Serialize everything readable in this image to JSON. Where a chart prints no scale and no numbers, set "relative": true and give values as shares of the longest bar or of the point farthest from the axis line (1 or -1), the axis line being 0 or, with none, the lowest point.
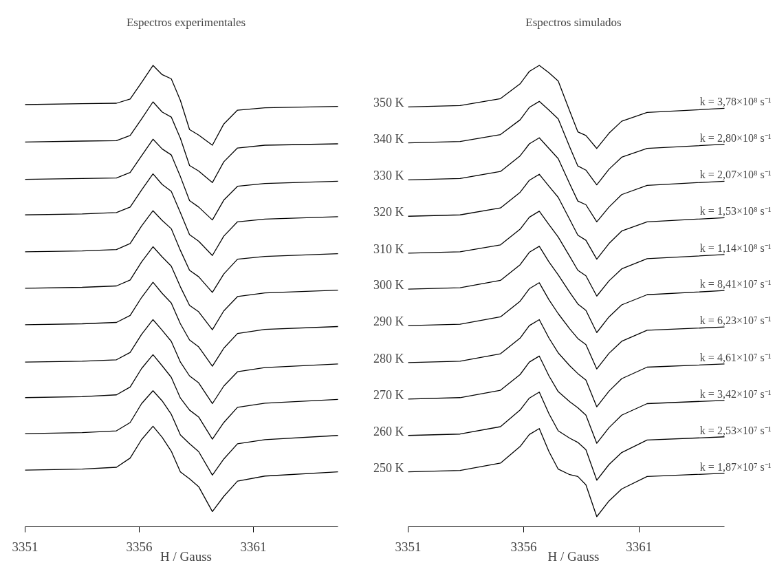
{
  "chart_data": [
    {
      "type": "line",
      "title": "Espectros experimentales",
      "xlabel": "H / Gauss",
      "relative": true,
      "grid": false,
      "xlim": [
        3351,
        3364.7
      ],
      "xticks": [
        3351,
        3356,
        3361
      ],
      "x": [
        3351,
        3353.5,
        3355,
        3355.6,
        3356.1,
        3356.6,
        3357.0,
        3357.4,
        3357.8,
        3358.2,
        3358.6,
        3359.2,
        3359.7,
        3360.3,
        3361.5,
        3364.7
      ],
      "series": [
        {
          "color": "#000000",
          "values": [
            0.915,
            0.917,
            0.918,
            0.927,
            0.963,
            1.0,
            0.98,
            0.971,
            0.924,
            0.861,
            0.849,
            0.827,
            0.873,
            0.903,
            0.908,
            0.911
          ]
        },
        {
          "color": "#000000",
          "values": [
            0.834,
            0.836,
            0.837,
            0.848,
            0.884,
            0.921,
            0.899,
            0.888,
            0.842,
            0.783,
            0.771,
            0.746,
            0.791,
            0.821,
            0.827,
            0.83
          ]
        },
        {
          "color": "#000000",
          "values": [
            0.753,
            0.755,
            0.756,
            0.768,
            0.804,
            0.84,
            0.819,
            0.806,
            0.759,
            0.707,
            0.693,
            0.665,
            0.708,
            0.738,
            0.744,
            0.749
          ]
        },
        {
          "color": "#000000",
          "values": [
            0.676,
            0.678,
            0.681,
            0.693,
            0.73,
            0.765,
            0.742,
            0.727,
            0.681,
            0.633,
            0.619,
            0.588,
            0.63,
            0.661,
            0.667,
            0.672
          ]
        },
        {
          "color": "#000000",
          "values": [
            0.596,
            0.598,
            0.601,
            0.614,
            0.652,
            0.685,
            0.664,
            0.646,
            0.599,
            0.556,
            0.542,
            0.508,
            0.548,
            0.58,
            0.586,
            0.592
          ]
        },
        {
          "color": "#000000",
          "values": [
            0.517,
            0.519,
            0.522,
            0.535,
            0.574,
            0.607,
            0.585,
            0.565,
            0.52,
            0.48,
            0.466,
            0.427,
            0.468,
            0.499,
            0.507,
            0.513
          ]
        },
        {
          "color": "#000000",
          "values": [
            0.438,
            0.44,
            0.443,
            0.458,
            0.497,
            0.53,
            0.506,
            0.485,
            0.44,
            0.405,
            0.39,
            0.348,
            0.387,
            0.419,
            0.428,
            0.434
          ]
        },
        {
          "color": "#000000",
          "values": [
            0.357,
            0.359,
            0.362,
            0.378,
            0.417,
            0.449,
            0.426,
            0.402,
            0.357,
            0.327,
            0.312,
            0.267,
            0.305,
            0.336,
            0.345,
            0.353
          ]
        },
        {
          "color": "#000000",
          "values": [
            0.28,
            0.282,
            0.286,
            0.303,
            0.343,
            0.373,
            0.349,
            0.324,
            0.279,
            0.253,
            0.238,
            0.19,
            0.226,
            0.259,
            0.268,
            0.276
          ]
        },
        {
          "color": "#000000",
          "values": [
            0.202,
            0.204,
            0.208,
            0.226,
            0.267,
            0.295,
            0.273,
            0.244,
            0.199,
            0.18,
            0.163,
            0.112,
            0.147,
            0.18,
            0.189,
            0.198
          ]
        },
        {
          "color": "#000000",
          "values": [
            0.123,
            0.125,
            0.129,
            0.149,
            0.189,
            0.218,
            0.194,
            0.164,
            0.119,
            0.104,
            0.087,
            0.033,
            0.066,
            0.099,
            0.11,
            0.119
          ]
        }
      ]
    },
    {
      "type": "line",
      "title": "Espectros simulados",
      "xlabel": "H / Gauss",
      "relative": true,
      "grid": false,
      "xlim": [
        3351,
        3364.7
      ],
      "xticks": [
        3351,
        3356,
        3361
      ],
      "x": [
        3351,
        3353.25,
        3355,
        3355.85,
        3356.25,
        3356.68,
        3357.1,
        3357.5,
        3358.0,
        3358.35,
        3358.7,
        3359.17,
        3359.7,
        3360.25,
        3361.35,
        3364.7
      ],
      "series": [
        {
          "name": "350 K",
          "color": "#000000",
          "values": [
            0.91,
            0.913,
            0.928,
            0.96,
            0.987,
            1.0,
            0.984,
            0.966,
            0.901,
            0.856,
            0.848,
            0.82,
            0.853,
            0.879,
            0.898,
            0.907
          ]
        },
        {
          "name": "340 K",
          "color": "#000000",
          "values": [
            0.832,
            0.835,
            0.85,
            0.882,
            0.909,
            0.922,
            0.903,
            0.884,
            0.823,
            0.782,
            0.773,
            0.741,
            0.775,
            0.801,
            0.82,
            0.829
          ]
        },
        {
          "name": "330 K",
          "color": "#000000",
          "values": [
            0.752,
            0.755,
            0.77,
            0.804,
            0.83,
            0.843,
            0.82,
            0.798,
            0.743,
            0.706,
            0.698,
            0.661,
            0.693,
            0.72,
            0.74,
            0.749
          ]
        },
        {
          "name": "320 K",
          "color": "#000000",
          "values": [
            0.673,
            0.676,
            0.691,
            0.725,
            0.751,
            0.764,
            0.738,
            0.714,
            0.666,
            0.632,
            0.621,
            0.58,
            0.614,
            0.641,
            0.661,
            0.67
          ]
        },
        {
          "name": "310 K",
          "color": "#000000",
          "values": [
            0.593,
            0.596,
            0.611,
            0.645,
            0.671,
            0.684,
            0.655,
            0.628,
            0.586,
            0.556,
            0.544,
            0.5,
            0.533,
            0.559,
            0.581,
            0.59
          ]
        },
        {
          "name": "300 K",
          "color": "#000000",
          "values": [
            0.515,
            0.518,
            0.534,
            0.568,
            0.595,
            0.608,
            0.574,
            0.546,
            0.508,
            0.483,
            0.469,
            0.421,
            0.455,
            0.481,
            0.503,
            0.512
          ]
        },
        {
          "name": "290 K",
          "color": "#000000",
          "values": [
            0.436,
            0.439,
            0.455,
            0.489,
            0.516,
            0.529,
            0.492,
            0.462,
            0.429,
            0.408,
            0.395,
            0.342,
            0.376,
            0.402,
            0.426,
            0.433
          ]
        },
        {
          "name": "280 K",
          "color": "#000000",
          "values": [
            0.356,
            0.359,
            0.375,
            0.409,
            0.436,
            0.449,
            0.409,
            0.377,
            0.349,
            0.332,
            0.318,
            0.26,
            0.294,
            0.321,
            0.346,
            0.353
          ]
        },
        {
          "name": "270 K",
          "color": "#000000",
          "values": [
            0.277,
            0.28,
            0.296,
            0.33,
            0.357,
            0.37,
            0.327,
            0.293,
            0.271,
            0.258,
            0.242,
            0.181,
            0.215,
            0.242,
            0.267,
            0.274
          ]
        },
        {
          "name": "260 K",
          "color": "#000000",
          "values": [
            0.198,
            0.201,
            0.217,
            0.253,
            0.279,
            0.292,
            0.245,
            0.208,
            0.192,
            0.183,
            0.167,
            0.101,
            0.135,
            0.161,
            0.188,
            0.195
          ]
        },
        {
          "name": "250 K",
          "color": "#000000",
          "values": [
            0.119,
            0.122,
            0.138,
            0.174,
            0.2,
            0.213,
            0.163,
            0.125,
            0.113,
            0.109,
            0.091,
            0.022,
            0.056,
            0.082,
            0.109,
            0.116
          ]
        }
      ],
      "annotations": [
        "k = 3,78×10⁸ s⁻¹",
        "k = 2,80×10⁸ s⁻¹",
        "k = 2,07×10⁸ s⁻¹",
        "k = 1,53×10⁸ s⁻¹",
        "k = 1,14×10⁸ s⁻¹",
        "k = 8,41×10⁷ s⁻¹",
        "k = 6,23×10⁷ s⁻¹",
        "k = 4,61×10⁷ s⁻¹",
        "k = 3,42×10⁷ s⁻¹",
        "k = 2,53×10⁷ s⁻¹",
        "k = 1,87×10⁷ s⁻¹"
      ]
    }
  ]
}
